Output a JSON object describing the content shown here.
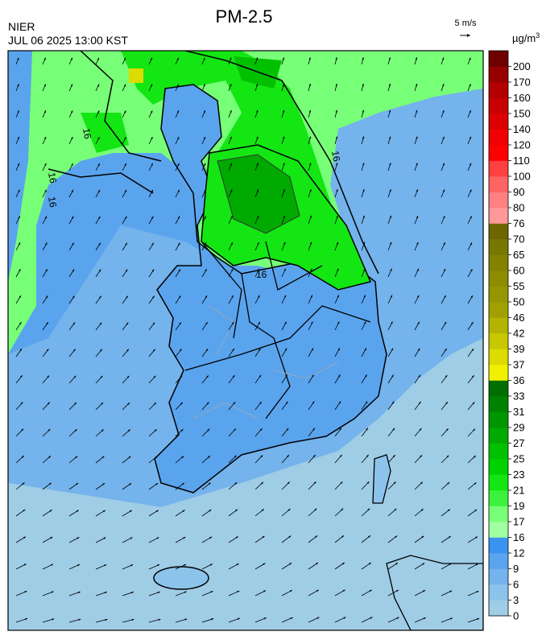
{
  "header": {
    "title": "PM-2.5",
    "agency": "NIER",
    "timestamp": "JUL 06 2025 13:00 KST",
    "wind_scale": "5 m/s"
  },
  "legend": {
    "unit": "µg/m",
    "unit_sup": "3",
    "levels": [
      0,
      3,
      6,
      9,
      12,
      16,
      17,
      19,
      21,
      23,
      25,
      27,
      29,
      31,
      33,
      36,
      37,
      39,
      42,
      46,
      50,
      55,
      60,
      65,
      70,
      76,
      80,
      90,
      100,
      110,
      120,
      140,
      150,
      160,
      170,
      200
    ],
    "colors": [
      "#9fcde6",
      "#8cc3ea",
      "#74b3ec",
      "#5aa4ee",
      "#3a93f0",
      "#a0ffa0",
      "#78ff78",
      "#3cf23c",
      "#14e614",
      "#00d200",
      "#00c000",
      "#00aa00",
      "#009600",
      "#008200",
      "#006e00",
      "#f0f000",
      "#dcdc00",
      "#c8c800",
      "#b4b400",
      "#a0a000",
      "#969600",
      "#8c8c00",
      "#828200",
      "#787800",
      "#6e6600",
      "#ff9898",
      "#ff8080",
      "#ff6464",
      "#ff4040",
      "#ff0000",
      "#f00000",
      "#dc0000",
      "#c80000",
      "#b40000",
      "#960000",
      "#6e0000"
    ]
  },
  "contour_labels": [
    "16",
    "16",
    "16",
    "16",
    "16"
  ]
}
